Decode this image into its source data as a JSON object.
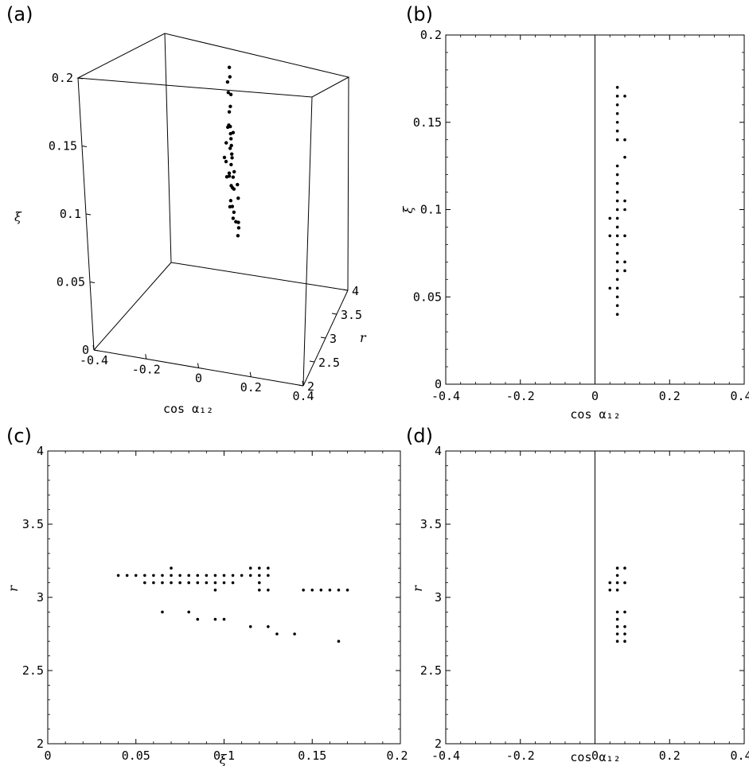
{
  "chart_data": [
    {
      "panel": "(a)",
      "type": "scatter",
      "xlabel": "cos α₁₂",
      "ylabel": "r",
      "zlabel": "ξ",
      "xlim": [
        -0.4,
        0.4
      ],
      "ylim": [
        2,
        4
      ],
      "zlim": [
        0,
        0.2
      ],
      "xticks": [
        "-0.4",
        "-0.2",
        "0",
        "0.2",
        "0.4"
      ],
      "yticks": [
        "2",
        "2.5",
        "3",
        "3.5",
        "4"
      ],
      "zticks": [
        "0",
        "0.05",
        "0.1",
        "0.15",
        "0.2"
      ],
      "points": [
        [
          0.08,
          3.1,
          0.185
        ],
        [
          0.08,
          3.1,
          0.178
        ],
        [
          0.065,
          3.15,
          0.172
        ],
        [
          0.08,
          3.0,
          0.17
        ],
        [
          0.08,
          3.1,
          0.165
        ],
        [
          0.08,
          3.05,
          0.158
        ],
        [
          0.065,
          3.15,
          0.15
        ],
        [
          0.08,
          2.9,
          0.148
        ],
        [
          0.08,
          3.0,
          0.145
        ],
        [
          0.065,
          3.1,
          0.142
        ],
        [
          0.08,
          2.8,
          0.14
        ],
        [
          0.08,
          3.1,
          0.137
        ],
        [
          0.065,
          3.15,
          0.134
        ],
        [
          0.08,
          3.0,
          0.131
        ],
        [
          0.08,
          2.75,
          0.128
        ],
        [
          0.065,
          3.1,
          0.125
        ],
        [
          0.08,
          3.0,
          0.122
        ],
        [
          0.065,
          3.15,
          0.119
        ],
        [
          0.08,
          2.85,
          0.116
        ],
        [
          0.065,
          3.1,
          0.113
        ],
        [
          0.08,
          3.05,
          0.11
        ],
        [
          0.065,
          3.0,
          0.108
        ],
        [
          0.08,
          2.9,
          0.105
        ],
        [
          0.065,
          3.15,
          0.102
        ],
        [
          0.08,
          3.0,
          0.099
        ],
        [
          0.065,
          3.1,
          0.096
        ],
        [
          0.08,
          2.8,
          0.093
        ],
        [
          0.065,
          3.0,
          0.09
        ],
        [
          0.08,
          3.15,
          0.087
        ],
        [
          0.065,
          3.05,
          0.084
        ],
        [
          0.08,
          2.9,
          0.081
        ],
        [
          0.065,
          3.1,
          0.078
        ],
        [
          0.08,
          3.0,
          0.075
        ],
        [
          0.08,
          3.1,
          0.071
        ],
        [
          0.08,
          3.1,
          0.067
        ],
        [
          0.08,
          3.05,
          0.063
        ],
        [
          0.08,
          3.0,
          0.136
        ],
        [
          0.065,
          2.9,
          0.111
        ],
        [
          0.08,
          3.15,
          0.097
        ],
        [
          0.065,
          2.85,
          0.127
        ]
      ]
    },
    {
      "panel": "(b)",
      "type": "scatter",
      "xlabel": "cos α₁₂",
      "ylabel": "ξ",
      "xlim": [
        -0.4,
        0.4
      ],
      "ylim": [
        0,
        0.2
      ],
      "xticks": [
        "-0.4",
        "-0.2",
        "0",
        "0.2",
        "0.4"
      ],
      "yticks": [
        "0",
        "0.05",
        "0.1",
        "0.15",
        "0.2"
      ],
      "vline_x": 0,
      "points": [
        [
          0.06,
          0.04
        ],
        [
          0.06,
          0.045
        ],
        [
          0.06,
          0.05
        ],
        [
          0.04,
          0.055
        ],
        [
          0.06,
          0.055
        ],
        [
          0.06,
          0.06
        ],
        [
          0.06,
          0.065
        ],
        [
          0.08,
          0.065
        ],
        [
          0.06,
          0.07
        ],
        [
          0.08,
          0.07
        ],
        [
          0.06,
          0.075
        ],
        [
          0.06,
          0.08
        ],
        [
          0.06,
          0.085
        ],
        [
          0.04,
          0.085
        ],
        [
          0.08,
          0.085
        ],
        [
          0.06,
          0.09
        ],
        [
          0.06,
          0.095
        ],
        [
          0.04,
          0.095
        ],
        [
          0.06,
          0.1
        ],
        [
          0.08,
          0.1
        ],
        [
          0.06,
          0.105
        ],
        [
          0.08,
          0.105
        ],
        [
          0.06,
          0.11
        ],
        [
          0.06,
          0.115
        ],
        [
          0.06,
          0.12
        ],
        [
          0.06,
          0.125
        ],
        [
          0.08,
          0.13
        ],
        [
          0.08,
          0.14
        ],
        [
          0.06,
          0.14
        ],
        [
          0.06,
          0.145
        ],
        [
          0.06,
          0.15
        ],
        [
          0.06,
          0.155
        ],
        [
          0.06,
          0.16
        ],
        [
          0.06,
          0.165
        ],
        [
          0.08,
          0.165
        ],
        [
          0.06,
          0.17
        ]
      ]
    },
    {
      "panel": "(c)",
      "type": "scatter",
      "xlabel": "ξ",
      "ylabel": "r",
      "xlim": [
        0,
        0.2
      ],
      "ylim": [
        2,
        4
      ],
      "xticks": [
        "0",
        "0.05",
        "0.1",
        "0.15",
        "0.2"
      ],
      "yticks": [
        "2",
        "2.5",
        "3",
        "3.5",
        "4"
      ],
      "points": [
        [
          0.04,
          3.15
        ],
        [
          0.045,
          3.15
        ],
        [
          0.05,
          3.15
        ],
        [
          0.055,
          3.15
        ],
        [
          0.06,
          3.15
        ],
        [
          0.065,
          3.15
        ],
        [
          0.07,
          3.15
        ],
        [
          0.075,
          3.15
        ],
        [
          0.08,
          3.15
        ],
        [
          0.085,
          3.15
        ],
        [
          0.09,
          3.15
        ],
        [
          0.095,
          3.15
        ],
        [
          0.1,
          3.15
        ],
        [
          0.105,
          3.15
        ],
        [
          0.11,
          3.15
        ],
        [
          0.055,
          3.1
        ],
        [
          0.06,
          3.1
        ],
        [
          0.065,
          3.1
        ],
        [
          0.07,
          3.1
        ],
        [
          0.075,
          3.1
        ],
        [
          0.08,
          3.1
        ],
        [
          0.085,
          3.1
        ],
        [
          0.09,
          3.1
        ],
        [
          0.095,
          3.1
        ],
        [
          0.1,
          3.1
        ],
        [
          0.105,
          3.1
        ],
        [
          0.07,
          3.2
        ],
        [
          0.095,
          3.05
        ],
        [
          0.115,
          3.2
        ],
        [
          0.12,
          3.2
        ],
        [
          0.125,
          3.2
        ],
        [
          0.115,
          3.15
        ],
        [
          0.12,
          3.15
        ],
        [
          0.125,
          3.15
        ],
        [
          0.12,
          3.1
        ],
        [
          0.125,
          3.05
        ],
        [
          0.12,
          3.05
        ],
        [
          0.145,
          3.05
        ],
        [
          0.15,
          3.05
        ],
        [
          0.155,
          3.05
        ],
        [
          0.16,
          3.05
        ],
        [
          0.165,
          3.05
        ],
        [
          0.17,
          3.05
        ],
        [
          0.065,
          2.9
        ],
        [
          0.08,
          2.9
        ],
        [
          0.085,
          2.85
        ],
        [
          0.095,
          2.85
        ],
        [
          0.1,
          2.85
        ],
        [
          0.115,
          2.8
        ],
        [
          0.125,
          2.8
        ],
        [
          0.13,
          2.75
        ],
        [
          0.14,
          2.75
        ],
        [
          0.165,
          2.7
        ]
      ]
    },
    {
      "panel": "(d)",
      "type": "scatter",
      "xlabel": "cos α₁₂",
      "ylabel": "r",
      "xlim": [
        -0.4,
        0.4
      ],
      "ylim": [
        2,
        4
      ],
      "xticks": [
        "-0.4",
        "-0.2",
        "0",
        "0.2",
        "0.4"
      ],
      "yticks": [
        "2",
        "2.5",
        "3",
        "3.5",
        "4"
      ],
      "vline_x": 0,
      "points": [
        [
          0.06,
          3.2
        ],
        [
          0.08,
          3.2
        ],
        [
          0.06,
          3.15
        ],
        [
          0.04,
          3.1
        ],
        [
          0.06,
          3.1
        ],
        [
          0.08,
          3.1
        ],
        [
          0.04,
          3.05
        ],
        [
          0.06,
          3.05
        ],
        [
          0.06,
          2.9
        ],
        [
          0.08,
          2.9
        ],
        [
          0.06,
          2.85
        ],
        [
          0.06,
          2.8
        ],
        [
          0.08,
          2.8
        ],
        [
          0.06,
          2.75
        ],
        [
          0.08,
          2.75
        ],
        [
          0.06,
          2.7
        ],
        [
          0.08,
          2.7
        ]
      ]
    }
  ]
}
